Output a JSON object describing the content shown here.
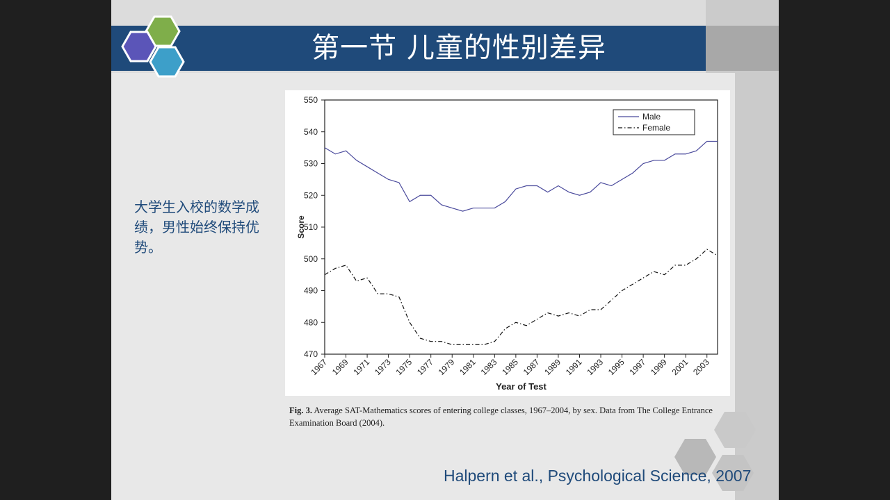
{
  "slide": {
    "title": "第一节  儿童的性别差异",
    "body_text": "大学生入校的数学成绩，男性始终保持优势。",
    "citation": "Halpern et al., Psychological Science, 2007",
    "caption_label": "Fig. 3.",
    "caption_text": "Average SAT-Mathematics scores of entering college classes, 1967–2004, by sex. Data from The College Entrance Examination Board (2004).",
    "colors": {
      "title_bar": "#1f4a7a",
      "text_accent": "#1f4a7a",
      "hex_purple": "#5b55b8",
      "hex_green": "#7fae4a",
      "hex_blue": "#3d9fc9",
      "male_line": "#4a4a9c",
      "female_line": "#111111"
    },
    "logo_icon": "hexagon-cluster-icon"
  },
  "chart_data": {
    "type": "line",
    "xlabel": "Year of Test",
    "ylabel": "Score",
    "xlim": [
      1967,
      2004
    ],
    "ylim": [
      470,
      550
    ],
    "x_ticks": [
      "1967",
      "1969",
      "1971",
      "1973",
      "1975",
      "1977",
      "1979",
      "1981",
      "1983",
      "1985",
      "1987",
      "1989",
      "1991",
      "1993",
      "1995",
      "1997",
      "1999",
      "2001",
      "2003"
    ],
    "y_ticks": [
      470,
      480,
      490,
      500,
      510,
      520,
      530,
      540,
      550
    ],
    "legend_position": "top-right",
    "grid": false,
    "x": [
      1967,
      1968,
      1969,
      1970,
      1971,
      1972,
      1973,
      1974,
      1975,
      1976,
      1977,
      1978,
      1979,
      1980,
      1981,
      1982,
      1983,
      1984,
      1985,
      1986,
      1987,
      1988,
      1989,
      1990,
      1991,
      1992,
      1993,
      1994,
      1995,
      1996,
      1997,
      1998,
      1999,
      2000,
      2001,
      2002,
      2003,
      2004
    ],
    "series": [
      {
        "name": "Male",
        "style": "solid",
        "values": [
          535,
          533,
          534,
          531,
          529,
          527,
          525,
          524,
          518,
          520,
          520,
          517,
          516,
          515,
          516,
          516,
          516,
          518,
          522,
          523,
          523,
          521,
          523,
          521,
          520,
          521,
          524,
          523,
          525,
          527,
          530,
          531,
          531,
          533,
          533,
          534,
          537,
          537
        ]
      },
      {
        "name": "Female",
        "style": "dash-dot",
        "values": [
          495,
          497,
          498,
          493,
          494,
          489,
          489,
          488,
          480,
          475,
          474,
          474,
          473,
          473,
          473,
          473,
          474,
          478,
          480,
          479,
          481,
          483,
          482,
          483,
          482,
          484,
          484,
          487,
          490,
          492,
          494,
          496,
          495,
          498,
          498,
          500,
          503,
          501
        ]
      }
    ]
  }
}
